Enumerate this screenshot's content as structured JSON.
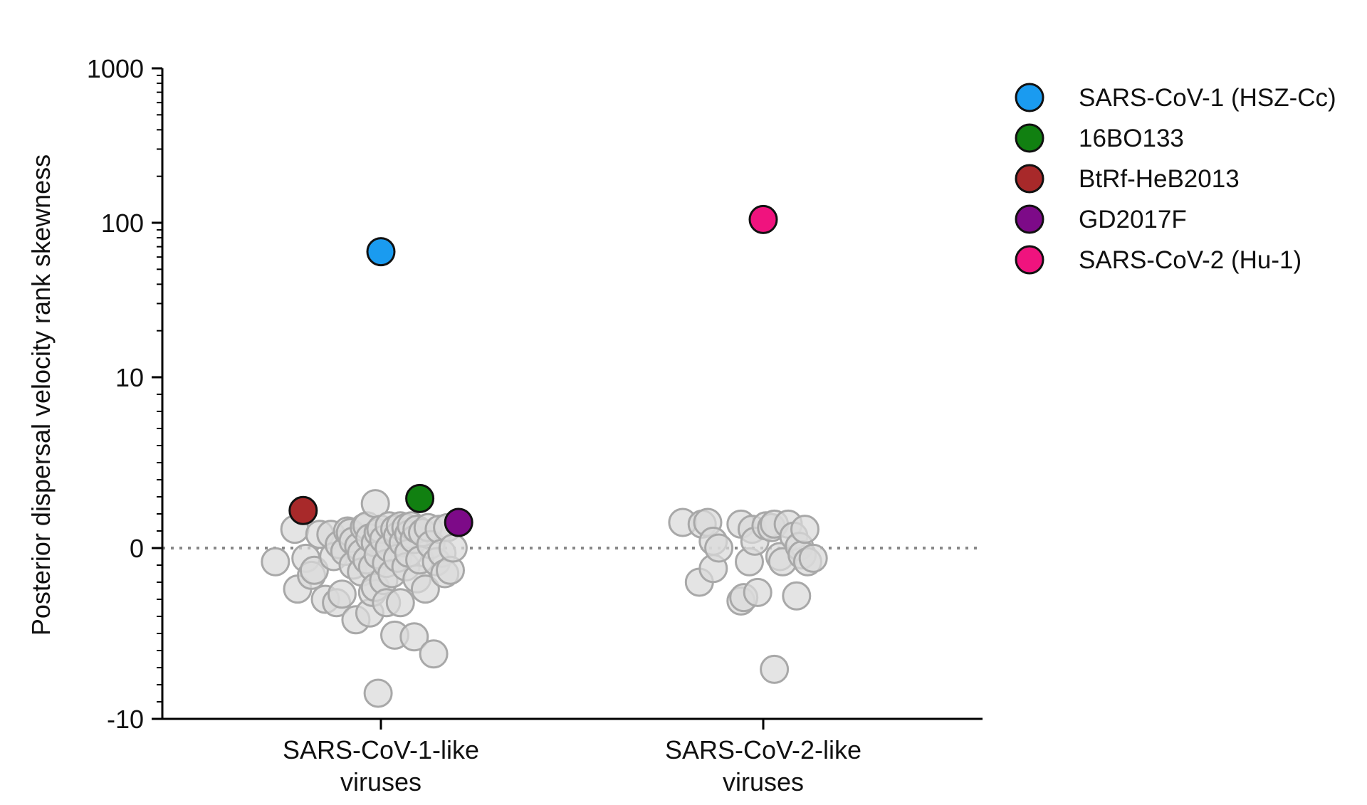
{
  "chart_data": {
    "type": "scatter",
    "ylabel": "Posterior dispersal velocity rank skewness",
    "yscale": "symlog",
    "ylim": [
      -10,
      1000
    ],
    "y_ticks": [
      {
        "value": -10,
        "label": "-10"
      },
      {
        "value": 0,
        "label": "0"
      },
      {
        "value": 10,
        "label": "10"
      },
      {
        "value": 100,
        "label": "100"
      },
      {
        "value": 1000,
        "label": "1000"
      }
    ],
    "reference_line": {
      "y": 0,
      "style": "dotted",
      "color": "#888888"
    },
    "categories": [
      {
        "line1": "SARS-CoV-1-like",
        "line2": "viruses"
      },
      {
        "line1": "SARS-CoV-2-like",
        "line2": "viruses"
      }
    ],
    "background_color": "#d9d9d9",
    "background_points": [
      {
        "category": 0,
        "jitter": -0.38,
        "y": -0.8
      },
      {
        "category": 0,
        "jitter": -0.31,
        "y": 1.1
      },
      {
        "category": 0,
        "jitter": -0.3,
        "y": -2.4
      },
      {
        "category": 0,
        "jitter": -0.27,
        "y": -0.6
      },
      {
        "category": 0,
        "jitter": -0.25,
        "y": -1.6
      },
      {
        "category": 0,
        "jitter": -0.24,
        "y": -1.3
      },
      {
        "category": 0,
        "jitter": -0.22,
        "y": 0.8
      },
      {
        "category": 0,
        "jitter": -0.2,
        "y": -3.0
      },
      {
        "category": 0,
        "jitter": -0.18,
        "y": 0.8
      },
      {
        "category": 0,
        "jitter": -0.17,
        "y": -0.5
      },
      {
        "category": 0,
        "jitter": -0.16,
        "y": -3.2
      },
      {
        "category": 0,
        "jitter": -0.15,
        "y": 0.2
      },
      {
        "category": 0,
        "jitter": -0.14,
        "y": -2.7
      },
      {
        "category": 0,
        "jitter": -0.13,
        "y": -0.2
      },
      {
        "category": 0,
        "jitter": -0.12,
        "y": 1.0
      },
      {
        "category": 0,
        "jitter": -0.11,
        "y": 0.9
      },
      {
        "category": 0,
        "jitter": -0.1,
        "y": 0.4
      },
      {
        "category": 0,
        "jitter": -0.1,
        "y": -1.0
      },
      {
        "category": 0,
        "jitter": -0.09,
        "y": -4.2
      },
      {
        "category": 0,
        "jitter": -0.08,
        "y": 0.1
      },
      {
        "category": 0,
        "jitter": -0.07,
        "y": -0.3
      },
      {
        "category": 0,
        "jitter": -0.07,
        "y": -1.4
      },
      {
        "category": 0,
        "jitter": -0.06,
        "y": 1.2
      },
      {
        "category": 0,
        "jitter": -0.05,
        "y": 1.3
      },
      {
        "category": 0,
        "jitter": -0.05,
        "y": -0.7
      },
      {
        "category": 0,
        "jitter": -0.04,
        "y": 0.6
      },
      {
        "category": 0,
        "jitter": -0.04,
        "y": -3.8
      },
      {
        "category": 0,
        "jitter": -0.03,
        "y": -2.6
      },
      {
        "category": 0,
        "jitter": -0.03,
        "y": -1.1
      },
      {
        "category": 0,
        "jitter": -0.02,
        "y": 0.3
      },
      {
        "category": 0,
        "jitter": -0.02,
        "y": -2.3
      },
      {
        "category": 0,
        "jitter": -0.01,
        "y": 0.9
      },
      {
        "category": 0,
        "jitter": -0.01,
        "y": -0.4
      },
      {
        "category": 0,
        "jitter": -0.02,
        "y": 2.6
      },
      {
        "category": 0,
        "jitter": -0.01,
        "y": -8.5
      },
      {
        "category": 0,
        "jitter": 0.0,
        "y": 1.1
      },
      {
        "category": 0,
        "jitter": 0.01,
        "y": -1.9
      },
      {
        "category": 0,
        "jitter": 0.01,
        "y": 0.5
      },
      {
        "category": 0,
        "jitter": 0.02,
        "y": -0.9
      },
      {
        "category": 0,
        "jitter": 0.02,
        "y": -3.2
      },
      {
        "category": 0,
        "jitter": 0.03,
        "y": 1.3
      },
      {
        "category": 0,
        "jitter": 0.03,
        "y": 0.0
      },
      {
        "category": 0,
        "jitter": 0.04,
        "y": -1.5
      },
      {
        "category": 0,
        "jitter": 0.05,
        "y": 1.1
      },
      {
        "category": 0,
        "jitter": 0.05,
        "y": -5.1
      },
      {
        "category": 0,
        "jitter": 0.06,
        "y": 0.7
      },
      {
        "category": 0,
        "jitter": 0.06,
        "y": -0.6
      },
      {
        "category": 0,
        "jitter": 0.07,
        "y": 1.3
      },
      {
        "category": 0,
        "jitter": 0.07,
        "y": -3.2
      },
      {
        "category": 0,
        "jitter": 0.08,
        "y": 0.3
      },
      {
        "category": 0,
        "jitter": 0.09,
        "y": 1.2
      },
      {
        "category": 0,
        "jitter": 0.09,
        "y": -1.1
      },
      {
        "category": 0,
        "jitter": 0.1,
        "y": 0.8
      },
      {
        "category": 0,
        "jitter": 0.1,
        "y": -0.3
      },
      {
        "category": 0,
        "jitter": 0.11,
        "y": 1.3
      },
      {
        "category": 0,
        "jitter": 0.12,
        "y": -5.2
      },
      {
        "category": 0,
        "jitter": 0.12,
        "y": 0.5
      },
      {
        "category": 0,
        "jitter": 0.13,
        "y": 1.1
      },
      {
        "category": 0,
        "jitter": 0.13,
        "y": -1.8
      },
      {
        "category": 0,
        "jitter": 0.14,
        "y": -0.7
      },
      {
        "category": 0,
        "jitter": 0.15,
        "y": 0.9
      },
      {
        "category": 0,
        "jitter": 0.16,
        "y": -2.4
      },
      {
        "category": 0,
        "jitter": 0.17,
        "y": 1.2
      },
      {
        "category": 0,
        "jitter": 0.18,
        "y": 0.2
      },
      {
        "category": 0,
        "jitter": 0.19,
        "y": -6.2
      },
      {
        "category": 0,
        "jitter": 0.2,
        "y": -0.8
      },
      {
        "category": 0,
        "jitter": 0.21,
        "y": 1.1
      },
      {
        "category": 0,
        "jitter": 0.22,
        "y": -0.3
      },
      {
        "category": 0,
        "jitter": 0.23,
        "y": -1.5
      },
      {
        "category": 0,
        "jitter": 0.24,
        "y": 1.2
      },
      {
        "category": 0,
        "jitter": 0.25,
        "y": -1.3
      },
      {
        "category": 0,
        "jitter": 0.26,
        "y": 0.0
      },
      {
        "category": 1,
        "jitter": -0.29,
        "y": 1.5
      },
      {
        "category": 1,
        "jitter": -0.23,
        "y": -2.0
      },
      {
        "category": 1,
        "jitter": -0.22,
        "y": 1.4
      },
      {
        "category": 1,
        "jitter": -0.2,
        "y": 1.5
      },
      {
        "category": 1,
        "jitter": -0.18,
        "y": 0.4
      },
      {
        "category": 1,
        "jitter": -0.18,
        "y": -1.2
      },
      {
        "category": 1,
        "jitter": -0.16,
        "y": 0.0
      },
      {
        "category": 1,
        "jitter": -0.08,
        "y": 1.4
      },
      {
        "category": 1,
        "jitter": -0.08,
        "y": -3.1
      },
      {
        "category": 1,
        "jitter": -0.07,
        "y": -2.9
      },
      {
        "category": 1,
        "jitter": -0.05,
        "y": -0.8
      },
      {
        "category": 1,
        "jitter": -0.04,
        "y": 1.1
      },
      {
        "category": 1,
        "jitter": -0.03,
        "y": 0.4
      },
      {
        "category": 1,
        "jitter": -0.02,
        "y": -2.6
      },
      {
        "category": 1,
        "jitter": 0.01,
        "y": 1.3
      },
      {
        "category": 1,
        "jitter": 0.03,
        "y": 1.2
      },
      {
        "category": 1,
        "jitter": 0.04,
        "y": -7.1
      },
      {
        "category": 1,
        "jitter": 0.04,
        "y": 1.4
      },
      {
        "category": 1,
        "jitter": 0.06,
        "y": -0.5
      },
      {
        "category": 1,
        "jitter": 0.07,
        "y": -0.8
      },
      {
        "category": 1,
        "jitter": 0.09,
        "y": 1.4
      },
      {
        "category": 1,
        "jitter": 0.11,
        "y": 0.7
      },
      {
        "category": 1,
        "jitter": 0.12,
        "y": -2.8
      },
      {
        "category": 1,
        "jitter": 0.13,
        "y": 0.1
      },
      {
        "category": 1,
        "jitter": 0.14,
        "y": -0.4
      },
      {
        "category": 1,
        "jitter": 0.15,
        "y": 1.1
      },
      {
        "category": 1,
        "jitter": 0.16,
        "y": -0.8
      },
      {
        "category": 1,
        "jitter": 0.18,
        "y": -0.6
      }
    ],
    "highlighted_points": [
      {
        "name": "SARS-CoV-1 (HSZ-Cc)",
        "color": "#1a9bf0",
        "category": 0,
        "jitter": 0.0,
        "y": 65
      },
      {
        "name": "16BO133",
        "color": "#118011",
        "category": 0,
        "jitter": 0.14,
        "y": 2.9
      },
      {
        "name": "BtRf-HeB2013",
        "color": "#a8292a",
        "category": 0,
        "jitter": -0.28,
        "y": 2.2
      },
      {
        "name": "GD2017F",
        "color": "#7d0a88",
        "category": 0,
        "jitter": 0.28,
        "y": 1.5
      },
      {
        "name": "SARS-CoV-2 (Hu-1)",
        "color": "#f0137e",
        "category": 1,
        "jitter": 0.0,
        "y": 105
      }
    ],
    "legend_position": "top-right"
  }
}
